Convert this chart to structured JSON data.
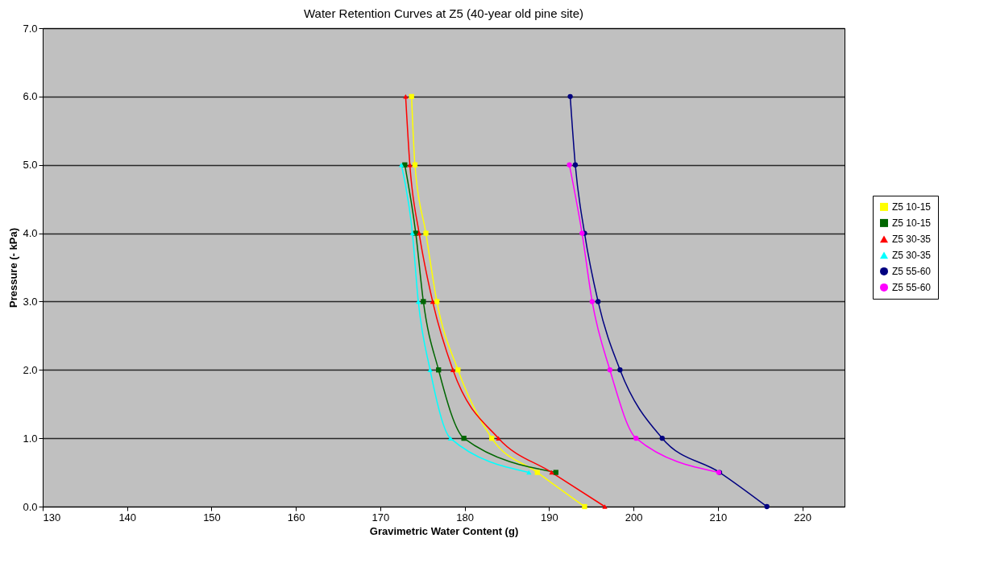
{
  "chart_data": {
    "type": "line",
    "title": "Water Retention Curves at Z5 (40-year old pine site)",
    "xlabel": "Gravimetric Water Content (g)",
    "ylabel": "Pressure (- kPa)",
    "xlim": [
      130,
      225
    ],
    "xticks": [
      130,
      140,
      150,
      160,
      170,
      180,
      190,
      200,
      210,
      220
    ],
    "ylim": [
      0,
      7
    ],
    "yticks": [
      {
        "value": 0,
        "label": "0.0"
      },
      {
        "value": 1,
        "label": "1.0"
      },
      {
        "value": 2,
        "label": "2.0"
      },
      {
        "value": 3,
        "label": "3.0"
      },
      {
        "value": 4,
        "label": "4.0"
      },
      {
        "value": 5,
        "label": "5.0"
      },
      {
        "value": 6,
        "label": "6.0"
      },
      {
        "value": 7,
        "label": "7.0"
      }
    ],
    "grid": "y",
    "legend": "right",
    "series": [
      {
        "name": "Z5 10-15",
        "color": "#ffff00",
        "marker": "square",
        "x": [
          173.7,
          174.1,
          175.4,
          176.7,
          179.2,
          183.2,
          188.6,
          194.2
        ],
        "values": [
          6,
          5,
          4,
          3,
          2,
          1,
          0.5,
          0
        ]
      },
      {
        "name": "Z5 10-15",
        "color": "#006600",
        "marker": "square",
        "x": [
          172.9,
          174.2,
          175.1,
          176.9,
          179.9,
          190.8
        ],
        "values": [
          5,
          4,
          3,
          2,
          1,
          0.5
        ]
      },
      {
        "name": "Z5 30-35",
        "color": "#ff0000",
        "marker": "triangle",
        "x": [
          173.0,
          173.5,
          174.6,
          176.2,
          178.6,
          184.0,
          190.3,
          196.6
        ],
        "values": [
          6,
          5,
          4,
          3,
          2,
          1,
          0.5,
          0
        ]
      },
      {
        "name": "Z5 30-35",
        "color": "#00ffff",
        "marker": "triangle",
        "x": [
          172.5,
          173.8,
          174.5,
          175.9,
          178.3,
          187.6
        ],
        "values": [
          5,
          4,
          3,
          2,
          1,
          0.5
        ]
      },
      {
        "name": "Z5 55-60",
        "color": "#000080",
        "marker": "circle",
        "x": [
          192.5,
          193.1,
          194.2,
          195.8,
          198.4,
          203.4,
          210.2,
          215.8
        ],
        "values": [
          6,
          5,
          4,
          3,
          2,
          1,
          0.5,
          0
        ]
      },
      {
        "name": "Z5 55-60",
        "color": "#ff00ff",
        "marker": "circle",
        "x": [
          192.4,
          193.9,
          195.1,
          197.2,
          200.3,
          210.1
        ],
        "values": [
          5,
          4,
          3,
          2,
          1,
          0.5
        ]
      }
    ]
  }
}
